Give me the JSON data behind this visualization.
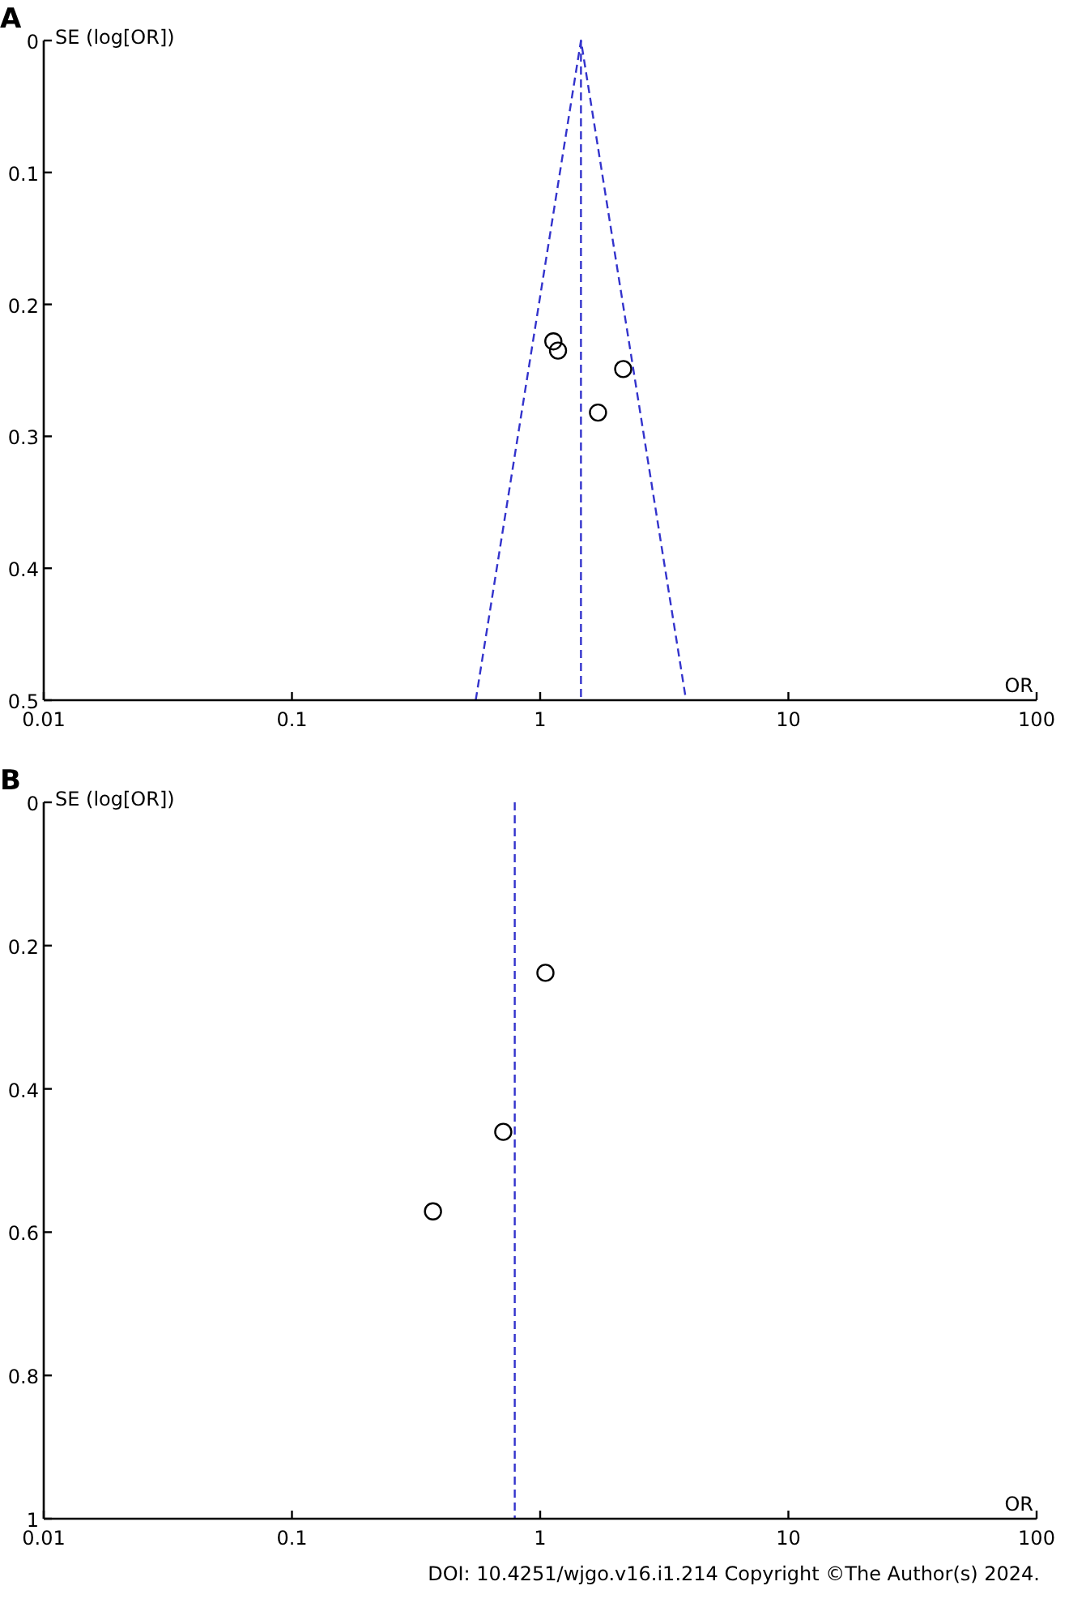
{
  "chart_data": [
    {
      "type": "scatter",
      "title": "A",
      "xlabel": "OR",
      "ylabel": "SE (log[OR])",
      "log": "x",
      "xlim": [
        0.01,
        100
      ],
      "xticks": [
        0.01,
        0.1,
        1,
        10,
        100
      ],
      "ylim": [
        0.5,
        0
      ],
      "yticks": [
        0,
        0.1,
        0.2,
        0.3,
        0.4,
        0.5
      ],
      "marker": "circle",
      "grid": false,
      "series": [
        {
          "color": "#000000",
          "x": [
            1.13,
            1.18,
            2.16,
            1.71
          ],
          "values": [
            0.228,
            0.235,
            0.249,
            0.282
          ]
        },
        {
          "type": "line",
          "color": "#3333cc",
          "line_style": "dashed",
          "marker": "none",
          "x": [
            0.55,
            1.46,
            3.87
          ],
          "values": [
            0.5,
            0,
            0.5
          ]
        }
      ],
      "ref_lines": [
        {
          "axis": "x",
          "value": 1.46,
          "color": "#3333cc",
          "line_style": "dashed"
        }
      ]
    },
    {
      "type": "scatter",
      "title": "B",
      "xlabel": "OR",
      "ylabel": "SE (log[OR])",
      "log": "x",
      "xlim": [
        0.01,
        100
      ],
      "xticks": [
        0.01,
        0.1,
        1,
        10,
        100
      ],
      "ylim": [
        1,
        0
      ],
      "yticks": [
        0,
        0.2,
        0.4,
        0.6,
        0.8,
        1
      ],
      "marker": "circle",
      "grid": false,
      "series": [
        {
          "color": "#000000",
          "x": [
            1.05,
            0.71,
            0.37
          ],
          "values": [
            0.238,
            0.46,
            0.571
          ]
        }
      ],
      "ref_lines": [
        {
          "axis": "x",
          "value": 0.79,
          "color": "#3333cc",
          "line_style": "dashed"
        }
      ],
      "annotations": [
        "DOI: 10.4251/wjgo.v16.i1.214 Copyright ©The Author(s) 2024."
      ]
    }
  ]
}
